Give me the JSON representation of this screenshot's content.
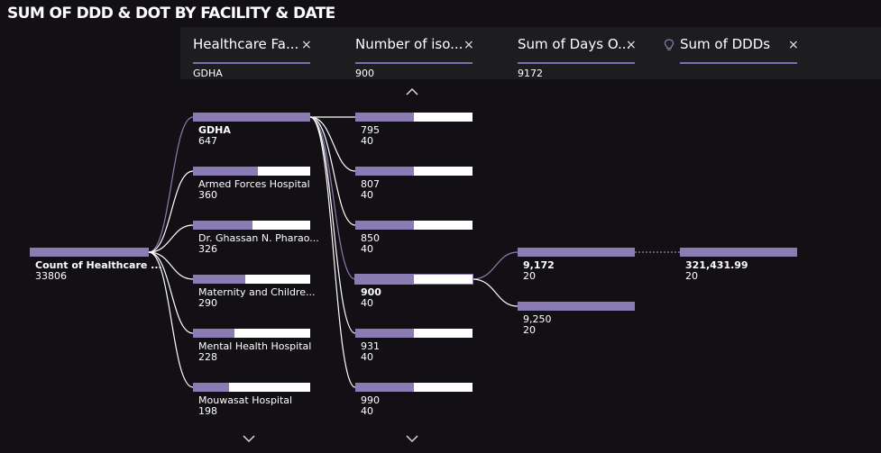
{
  "title": "SUM OF DDD & DOT BY FACILITY & DATE",
  "headers": [
    {
      "title": "Healthcare Fa...",
      "value": "GDHA",
      "close": "×"
    },
    {
      "title": "Number of iso...",
      "value": "900",
      "close": "×"
    },
    {
      "title": "Sum of Days O...",
      "value": "9172",
      "close": "×"
    },
    {
      "title": "Sum of DDDs",
      "value": "",
      "close": "×",
      "icon": "lightbulb-icon"
    }
  ],
  "root": {
    "label": "Count of Healthcare ...",
    "value": "33806",
    "fill": 1.0
  },
  "level1": [
    {
      "label": "GDHA",
      "value": "647",
      "fill": 1.0,
      "selected": true
    },
    {
      "label": "Armed Forces Hospital",
      "value": "360",
      "fill": 0.556
    },
    {
      "label": "Dr. Ghassan N. Pharao...",
      "value": "326",
      "fill": 0.504
    },
    {
      "label": "Maternity and Childre...",
      "value": "290",
      "fill": 0.448
    },
    {
      "label": "Mental Health Hospital",
      "value": "228",
      "fill": 0.352
    },
    {
      "label": "Mouwasat Hospital",
      "value": "198",
      "fill": 0.306
    }
  ],
  "level2": [
    {
      "label": "795",
      "value": "40",
      "fill": 0.5
    },
    {
      "label": "807",
      "value": "40",
      "fill": 0.5
    },
    {
      "label": "850",
      "value": "40",
      "fill": 0.5
    },
    {
      "label": "900",
      "value": "40",
      "fill": 0.5,
      "selected": true
    },
    {
      "label": "931",
      "value": "40",
      "fill": 0.5
    },
    {
      "label": "990",
      "value": "40",
      "fill": 0.5
    }
  ],
  "level3": [
    {
      "label": "9,172",
      "value": "20",
      "fill": 1.0,
      "selected": true
    },
    {
      "label": "9,250",
      "value": "20",
      "fill": 1.0
    }
  ],
  "level4": [
    {
      "label": "321,431.99",
      "value": "20",
      "fill": 1.0,
      "selected": true
    }
  ],
  "colors": {
    "accent": "#8a7cb3",
    "background": "#121014",
    "track": "#ffffff",
    "link": "#ffffff",
    "selected_link": "#8a7cb3"
  },
  "icons": {
    "scroll_up": "chevron-up-icon",
    "scroll_down": "chevron-down-icon",
    "close": "close-icon"
  }
}
